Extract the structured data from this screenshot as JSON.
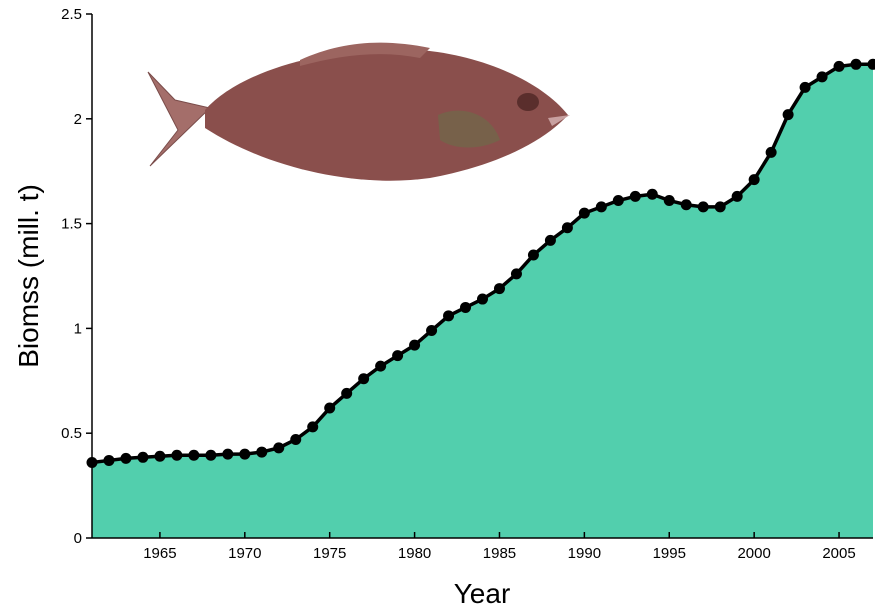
{
  "chart_data": {
    "type": "area",
    "x_label": "Year",
    "y_label": "Biomss (mill. t)",
    "x": [
      1961,
      1962,
      1963,
      1964,
      1965,
      1966,
      1967,
      1968,
      1969,
      1970,
      1971,
      1972,
      1973,
      1974,
      1975,
      1976,
      1977,
      1978,
      1979,
      1980,
      1981,
      1982,
      1983,
      1984,
      1985,
      1986,
      1987,
      1988,
      1989,
      1990,
      1991,
      1992,
      1993,
      1994,
      1995,
      1996,
      1997,
      1998,
      1999,
      2000,
      2001,
      2002,
      2003,
      2004,
      2005,
      2006,
      2007
    ],
    "values": [
      0.36,
      0.37,
      0.38,
      0.385,
      0.39,
      0.395,
      0.395,
      0.395,
      0.4,
      0.4,
      0.41,
      0.43,
      0.47,
      0.53,
      0.62,
      0.69,
      0.76,
      0.82,
      0.87,
      0.92,
      0.99,
      1.06,
      1.1,
      1.14,
      1.19,
      1.26,
      1.35,
      1.42,
      1.48,
      1.55,
      1.58,
      1.61,
      1.63,
      1.64,
      1.61,
      1.59,
      1.58,
      1.58,
      1.63,
      1.71,
      1.84,
      2.02,
      2.15,
      2.2,
      2.25,
      2.26,
      2.26
    ],
    "color": "#52cfad",
    "line_color": "#000000",
    "xlim": [
      1961,
      2007
    ],
    "ylim": [
      0,
      2.5
    ],
    "xticks": [
      1965,
      1970,
      1975,
      1980,
      1985,
      1990,
      1995,
      2000,
      2005
    ],
    "yticks": [
      0,
      0.5,
      1,
      1.5,
      2,
      2.5
    ],
    "grid": false
  }
}
